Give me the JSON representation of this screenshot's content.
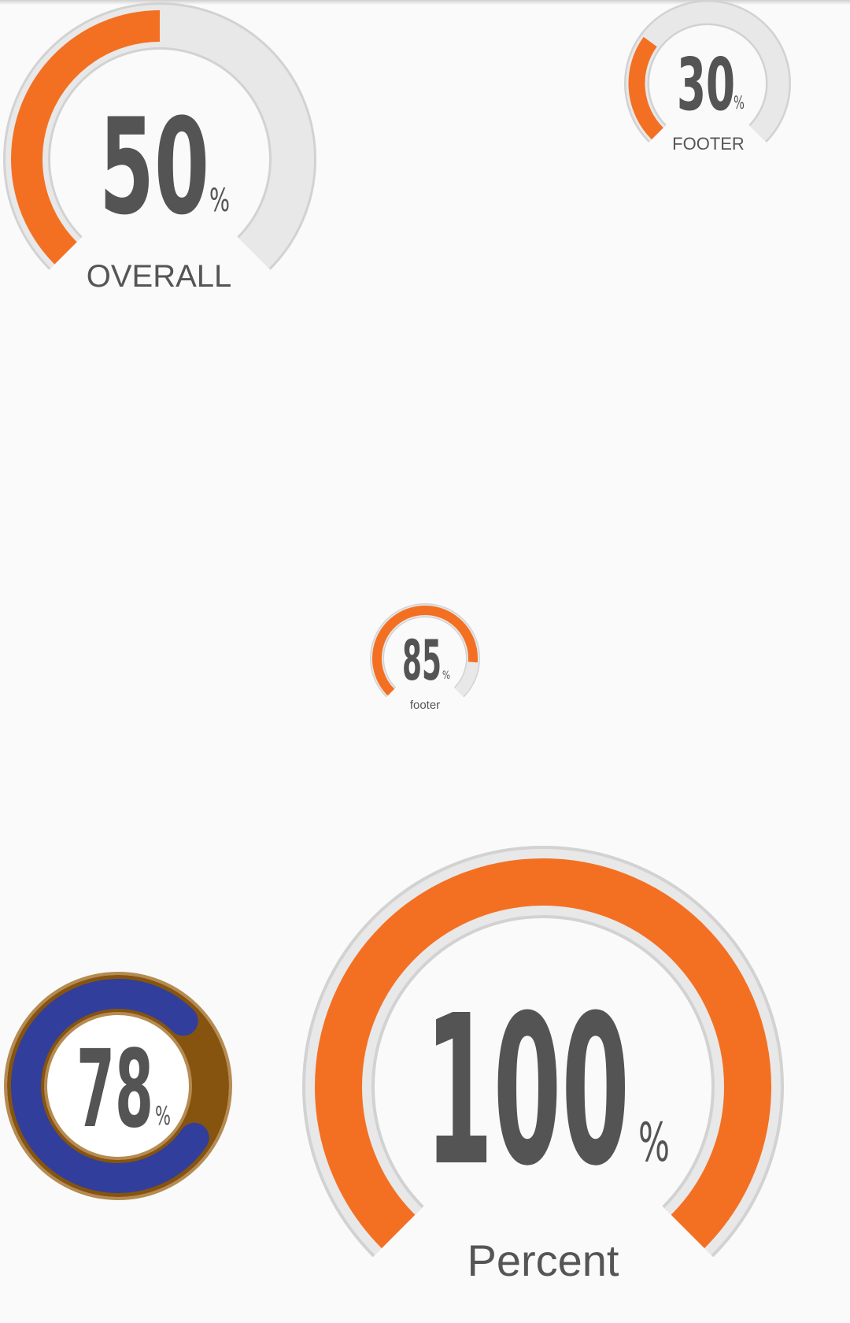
{
  "colors": {
    "background": "#fafafa",
    "track": "#e8e8e8",
    "track_border": "#d2d2d2",
    "progress": "#f37023",
    "text": "#545454",
    "ring_78_track": "#86540f",
    "ring_78_progress": "#313e9b"
  },
  "gauges": {
    "overall": {
      "value": "50",
      "unit": "%",
      "label": "OVERALL",
      "progress": 0.5
    },
    "footer_upper": {
      "value": "30",
      "unit": "%",
      "label": "FOOTER",
      "progress": 0.3
    },
    "footer_small": {
      "value": "85",
      "unit": "%",
      "label": "footer",
      "progress": 0.85
    },
    "ring": {
      "value": "78",
      "unit": "%",
      "label": "",
      "progress": 0.78
    },
    "percent": {
      "value": "100",
      "unit": "%",
      "label": "Percent",
      "progress": 1.0
    }
  }
}
